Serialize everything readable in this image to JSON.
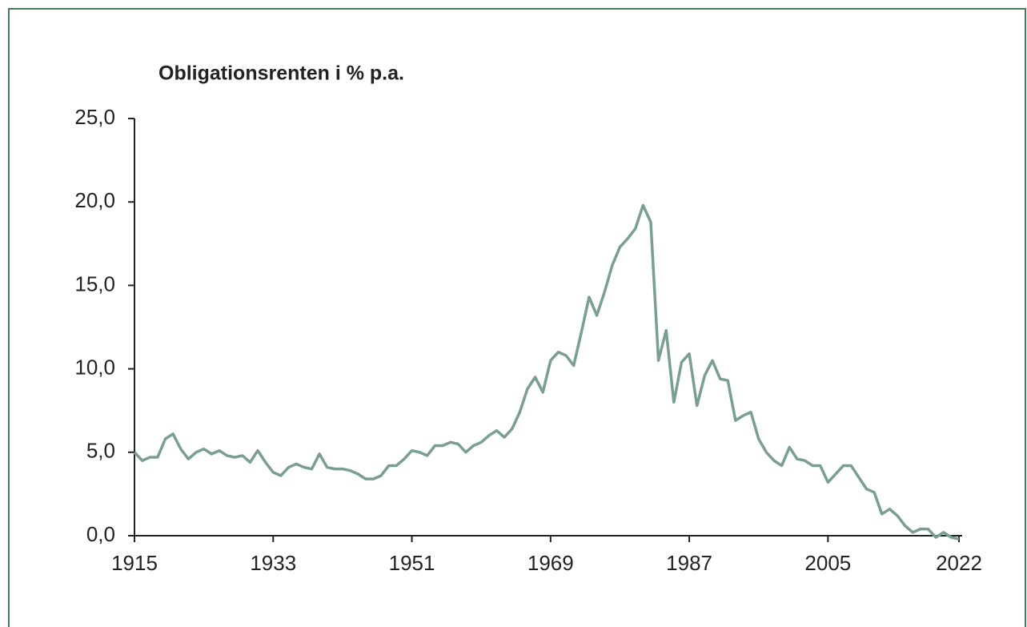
{
  "chart_data": {
    "type": "line",
    "title": "Obligationsrenten i % p.a.",
    "x": [
      1915,
      1916,
      1917,
      1918,
      1919,
      1920,
      1921,
      1922,
      1923,
      1924,
      1925,
      1926,
      1927,
      1928,
      1929,
      1930,
      1931,
      1932,
      1933,
      1934,
      1935,
      1936,
      1937,
      1938,
      1939,
      1940,
      1941,
      1942,
      1943,
      1944,
      1945,
      1946,
      1947,
      1948,
      1949,
      1950,
      1951,
      1952,
      1953,
      1954,
      1955,
      1956,
      1957,
      1958,
      1959,
      1960,
      1961,
      1962,
      1963,
      1964,
      1965,
      1966,
      1967,
      1968,
      1969,
      1970,
      1971,
      1972,
      1973,
      1974,
      1975,
      1976,
      1977,
      1978,
      1979,
      1980,
      1981,
      1982,
      1983,
      1984,
      1985,
      1986,
      1987,
      1988,
      1989,
      1990,
      1991,
      1992,
      1993,
      1994,
      1995,
      1996,
      1997,
      1998,
      1999,
      2000,
      2001,
      2002,
      2003,
      2004,
      2005,
      2006,
      2007,
      2008,
      2009,
      2010,
      2011,
      2012,
      2013,
      2014,
      2015,
      2016,
      2017,
      2018,
      2019,
      2020,
      2021,
      2022
    ],
    "series": [
      {
        "color": "#7a9e92",
        "values": [
          5.0,
          4.5,
          4.7,
          4.7,
          5.8,
          6.1,
          5.2,
          4.6,
          5.0,
          5.2,
          4.9,
          5.1,
          4.8,
          4.7,
          4.8,
          4.4,
          5.1,
          4.4,
          3.8,
          3.6,
          4.1,
          4.3,
          4.1,
          4.0,
          4.9,
          4.1,
          4.0,
          4.0,
          3.9,
          3.7,
          3.4,
          3.4,
          3.6,
          4.2,
          4.2,
          4.6,
          5.1,
          5.0,
          4.8,
          5.4,
          5.4,
          5.6,
          5.5,
          5.0,
          5.4,
          5.6,
          6.0,
          6.3,
          5.9,
          6.4,
          7.4,
          8.8,
          9.5,
          8.6,
          10.5,
          11.0,
          10.8,
          10.2,
          12.2,
          14.3,
          13.2,
          14.6,
          16.2,
          17.3,
          17.8,
          18.4,
          19.8,
          18.8,
          10.5,
          12.3,
          8.0,
          10.4,
          10.9,
          7.8,
          9.6,
          10.5,
          9.4,
          9.3,
          6.9,
          7.2,
          7.4,
          5.8,
          5.0,
          4.5,
          4.2,
          5.3,
          4.6,
          4.5,
          4.2,
          4.2,
          3.2,
          3.7,
          4.2,
          4.2,
          3.5,
          2.8,
          2.6,
          1.3,
          1.6,
          1.2,
          0.6,
          0.2,
          0.4,
          0.4,
          -0.1,
          0.2,
          -0.1,
          -0.2
        ]
      }
    ],
    "xlim": [
      1915,
      2022
    ],
    "xticks": [
      1915,
      1933,
      1951,
      1969,
      1987,
      2005,
      2022
    ],
    "ylim": [
      0,
      25
    ],
    "yticks": [
      {
        "value": 0,
        "label": "0,0"
      },
      {
        "value": 5,
        "label": "5,0"
      },
      {
        "value": 10,
        "label": "10,0"
      },
      {
        "value": 15,
        "label": "15,0"
      },
      {
        "value": 20,
        "label": "20,0"
      },
      {
        "value": 25,
        "label": "25,0"
      }
    ]
  }
}
